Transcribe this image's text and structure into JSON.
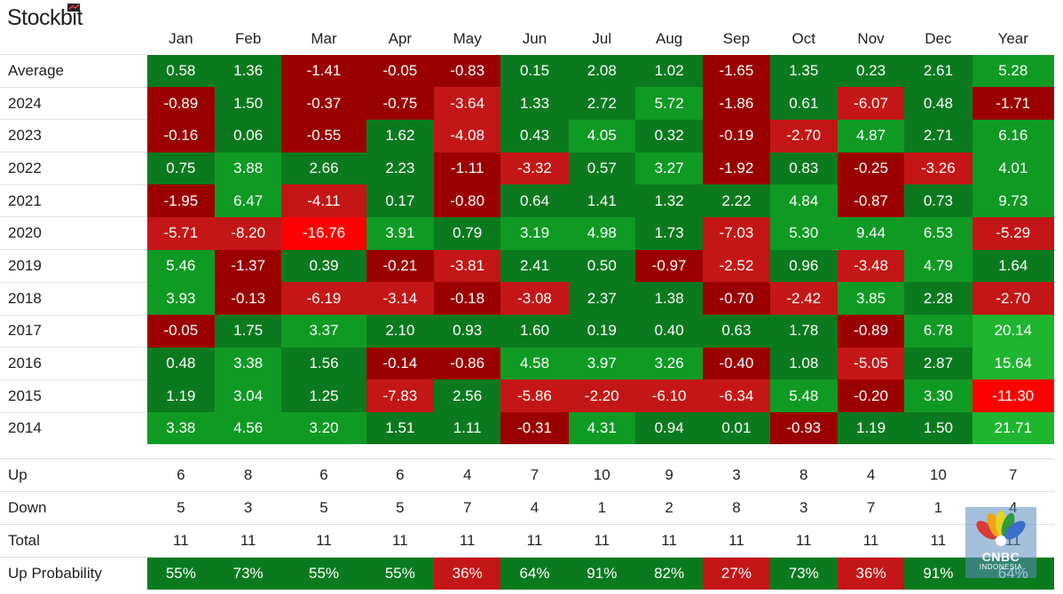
{
  "brand": {
    "name": "Stockbit"
  },
  "watermark": {
    "line1": "CNBC",
    "line2": "INDONESIA",
    "icon": "peacock-logo"
  },
  "colors": {
    "strong_green": "#0b7a1e",
    "green": "#0f9a24",
    "bright_green": "#1fb52f",
    "dark_red": "#9b0000",
    "red": "#c41616",
    "bright_red": "#ff0000"
  },
  "chart_data": {
    "type": "heatmap",
    "columns": [
      "Jan",
      "Feb",
      "Mar",
      "Apr",
      "May",
      "Jun",
      "Jul",
      "Aug",
      "Sep",
      "Oct",
      "Nov",
      "Dec",
      "Year"
    ],
    "rows": [
      {
        "label": "Average",
        "values": [
          "0.58",
          "1.36",
          "-1.41",
          "-0.05",
          "-0.83",
          "0.15",
          "2.08",
          "1.02",
          "-1.65",
          "1.35",
          "0.23",
          "2.61",
          "5.28"
        ]
      },
      {
        "label": "2024",
        "values": [
          "-0.89",
          "1.50",
          "-0.37",
          "-0.75",
          "-3.64",
          "1.33",
          "2.72",
          "5.72",
          "-1.86",
          "0.61",
          "-6.07",
          "0.48",
          "-1.71"
        ]
      },
      {
        "label": "2023",
        "values": [
          "-0.16",
          "0.06",
          "-0.55",
          "1.62",
          "-4.08",
          "0.43",
          "4.05",
          "0.32",
          "-0.19",
          "-2.70",
          "4.87",
          "2.71",
          "6.16"
        ]
      },
      {
        "label": "2022",
        "values": [
          "0.75",
          "3.88",
          "2.66",
          "2.23",
          "-1.11",
          "-3.32",
          "0.57",
          "3.27",
          "-1.92",
          "0.83",
          "-0.25",
          "-3.26",
          "4.01"
        ]
      },
      {
        "label": "2021",
        "values": [
          "-1.95",
          "6.47",
          "-4.11",
          "0.17",
          "-0.80",
          "0.64",
          "1.41",
          "1.32",
          "2.22",
          "4.84",
          "-0.87",
          "0.73",
          "9.73"
        ]
      },
      {
        "label": "2020",
        "values": [
          "-5.71",
          "-8.20",
          "-16.76",
          "3.91",
          "0.79",
          "3.19",
          "4.98",
          "1.73",
          "-7.03",
          "5.30",
          "9.44",
          "6.53",
          "-5.29"
        ]
      },
      {
        "label": "2019",
        "values": [
          "5.46",
          "-1.37",
          "0.39",
          "-0.21",
          "-3.81",
          "2.41",
          "0.50",
          "-0.97",
          "-2.52",
          "0.96",
          "-3.48",
          "4.79",
          "1.64"
        ]
      },
      {
        "label": "2018",
        "values": [
          "3.93",
          "-0.13",
          "-6.19",
          "-3.14",
          "-0.18",
          "-3.08",
          "2.37",
          "1.38",
          "-0.70",
          "-2.42",
          "3.85",
          "2.28",
          "-2.70"
        ]
      },
      {
        "label": "2017",
        "values": [
          "-0.05",
          "1.75",
          "3.37",
          "2.10",
          "0.93",
          "1.60",
          "0.19",
          "0.40",
          "0.63",
          "1.78",
          "-0.89",
          "6.78",
          "20.14"
        ]
      },
      {
        "label": "2016",
        "values": [
          "0.48",
          "3.38",
          "1.56",
          "-0.14",
          "-0.86",
          "4.58",
          "3.97",
          "3.26",
          "-0.40",
          "1.08",
          "-5.05",
          "2.87",
          "15.64"
        ]
      },
      {
        "label": "2015",
        "values": [
          "1.19",
          "3.04",
          "1.25",
          "-7.83",
          "2.56",
          "-5.86",
          "-2.20",
          "-6.10",
          "-6.34",
          "5.48",
          "-0.20",
          "3.30",
          "-11.30"
        ]
      },
      {
        "label": "2014",
        "values": [
          "3.38",
          "4.56",
          "3.20",
          "1.51",
          "1.11",
          "-0.31",
          "4.31",
          "0.94",
          "0.01",
          "-0.93",
          "1.19",
          "1.50",
          "21.71"
        ]
      }
    ],
    "stats": [
      {
        "label": "Up",
        "values": [
          "6",
          "8",
          "6",
          "6",
          "4",
          "7",
          "10",
          "9",
          "3",
          "8",
          "4",
          "10",
          "7"
        ]
      },
      {
        "label": "Down",
        "values": [
          "5",
          "3",
          "5",
          "5",
          "7",
          "4",
          "1",
          "2",
          "8",
          "3",
          "7",
          "1",
          "4"
        ]
      },
      {
        "label": "Total",
        "values": [
          "11",
          "11",
          "11",
          "11",
          "11",
          "11",
          "11",
          "11",
          "11",
          "11",
          "11",
          "11",
          "11"
        ]
      },
      {
        "label": "Up Probability",
        "values": [
          "55%",
          "73%",
          "55%",
          "55%",
          "36%",
          "64%",
          "91%",
          "82%",
          "27%",
          "73%",
          "36%",
          "91%",
          "64%"
        ]
      }
    ]
  }
}
